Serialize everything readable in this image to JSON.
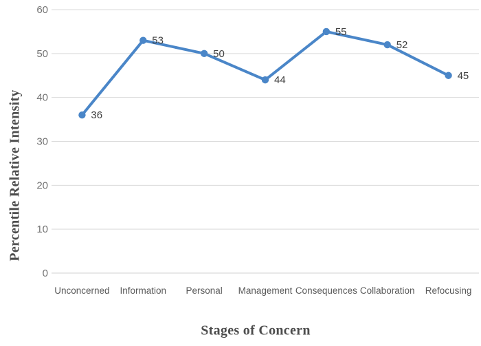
{
  "chart_data": {
    "type": "line",
    "categories": [
      "Unconcerned",
      "Information",
      "Personal",
      "Management",
      "Consequences",
      "Collaboration",
      "Refocusing"
    ],
    "values": [
      36,
      53,
      50,
      44,
      55,
      52,
      45
    ],
    "data_labels": [
      "36",
      "53",
      "50",
      "44",
      "55",
      "52",
      "45"
    ],
    "title": "",
    "xlabel": "Stages of Concern",
    "ylabel": "Percentile Relative Intensity",
    "ylim": [
      0,
      60
    ],
    "yticks": [
      0,
      10,
      20,
      30,
      40,
      50,
      60
    ],
    "grid": "horizontal",
    "legend": "none",
    "marker": "circle",
    "colors": {
      "line": "#4A86C8",
      "marker": "#4A86C8",
      "gridline": "#D9D9D9",
      "axis_line": "#D0D0D0",
      "y_tick_label": "#737373",
      "category_label": "#595959",
      "data_label": "#404040",
      "axis_title": "#4d4d4d"
    }
  }
}
